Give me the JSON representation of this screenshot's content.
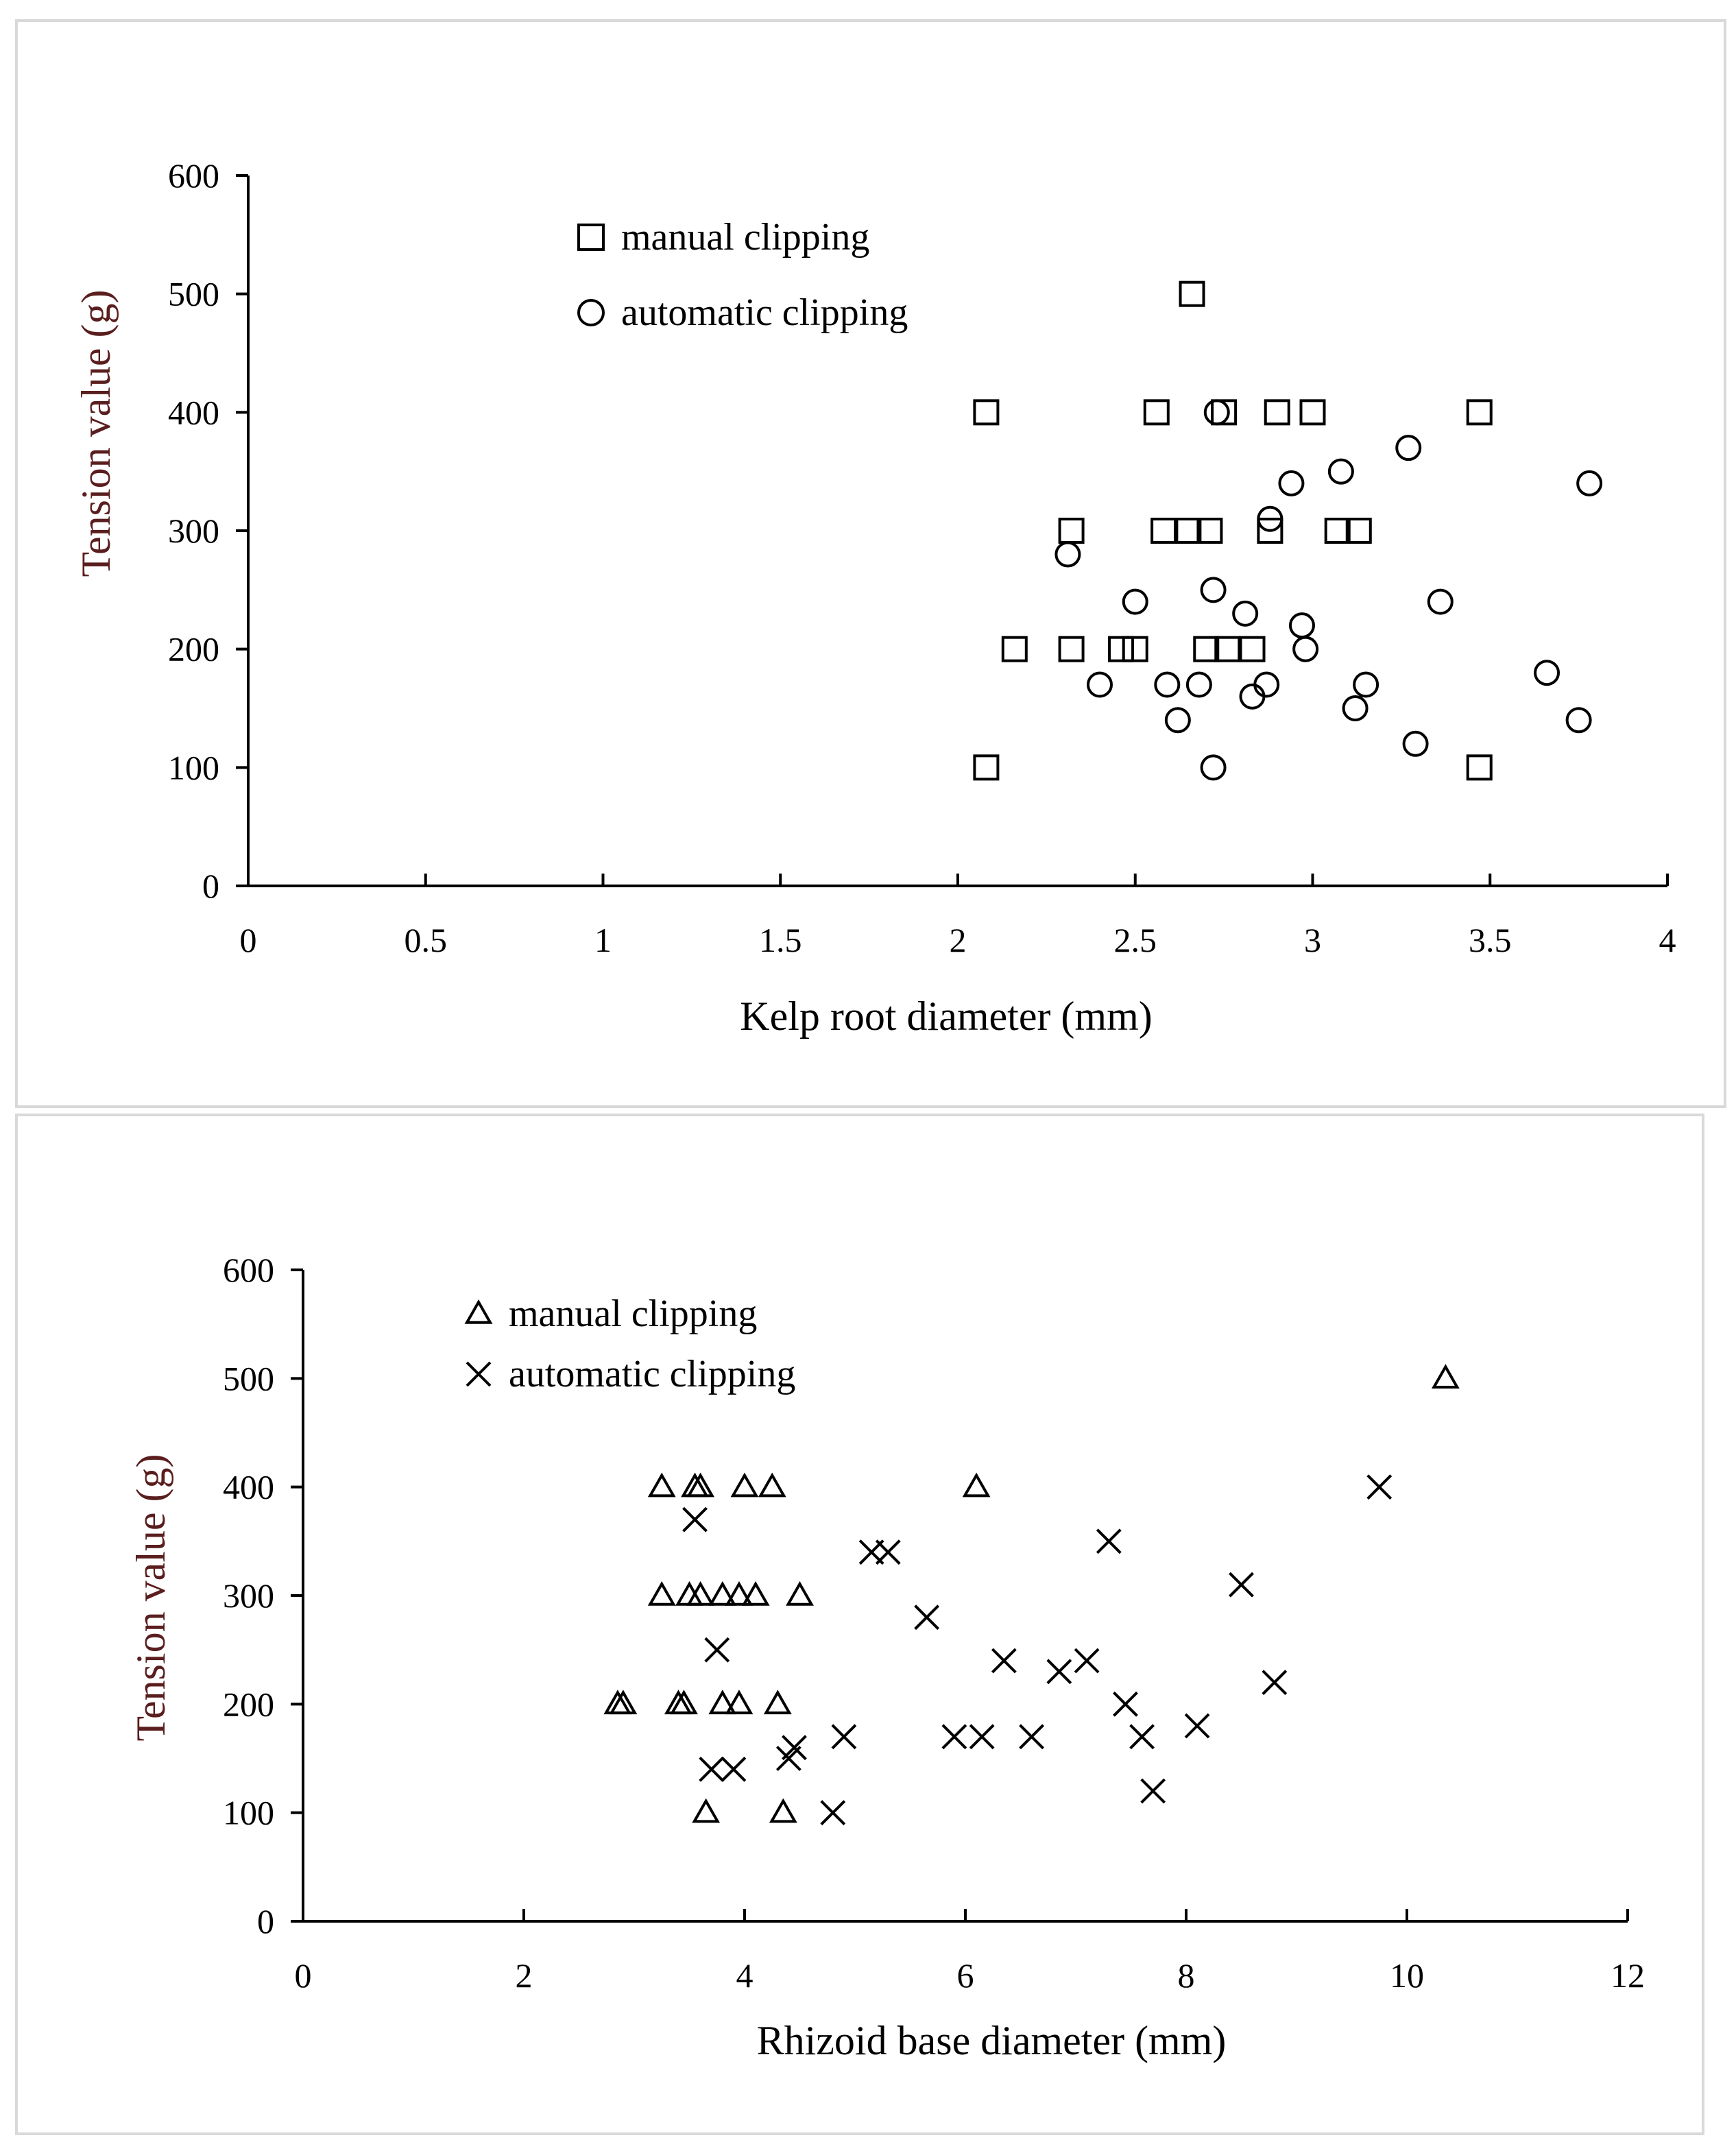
{
  "chart_data": [
    {
      "type": "scatter",
      "xlabel": "Kelp root diameter (mm)",
      "ylabel": "Tension value (g)",
      "xlim": [
        0,
        4
      ],
      "ylim": [
        0,
        600
      ],
      "xticks": [
        "0",
        "0.5",
        "1",
        "1.5",
        "2",
        "2.5",
        "3",
        "3.5",
        "4"
      ],
      "yticks": [
        "0",
        "100",
        "200",
        "300",
        "400",
        "500",
        "600"
      ],
      "legend_position": "top-left",
      "series": [
        {
          "name": "manual clipping",
          "marker": "square",
          "points": [
            [
              2.08,
              400
            ],
            [
              2.56,
              400
            ],
            [
              2.75,
              400
            ],
            [
              2.9,
              400
            ],
            [
              3.0,
              400
            ],
            [
              3.47,
              400
            ],
            [
              2.66,
              500
            ],
            [
              2.32,
              300
            ],
            [
              2.58,
              300
            ],
            [
              2.65,
              300
            ],
            [
              2.71,
              300
            ],
            [
              2.88,
              300
            ],
            [
              3.07,
              300
            ],
            [
              3.13,
              300
            ],
            [
              2.16,
              200
            ],
            [
              2.32,
              200
            ],
            [
              2.46,
              200
            ],
            [
              2.5,
              200
            ],
            [
              2.7,
              200
            ],
            [
              2.76,
              200
            ],
            [
              2.83,
              200
            ],
            [
              2.08,
              100
            ],
            [
              3.47,
              100
            ]
          ]
        },
        {
          "name": "automatic clipping",
          "marker": "circle",
          "points": [
            [
              2.73,
              400
            ],
            [
              3.27,
              370
            ],
            [
              3.08,
              350
            ],
            [
              2.94,
              340
            ],
            [
              3.78,
              340
            ],
            [
              2.88,
              310
            ],
            [
              2.31,
              280
            ],
            [
              2.72,
              250
            ],
            [
              2.5,
              240
            ],
            [
              3.36,
              240
            ],
            [
              2.81,
              230
            ],
            [
              2.97,
              220
            ],
            [
              2.98,
              200
            ],
            [
              3.66,
              180
            ],
            [
              2.4,
              170
            ],
            [
              2.59,
              170
            ],
            [
              2.68,
              170
            ],
            [
              2.87,
              170
            ],
            [
              3.15,
              170
            ],
            [
              2.83,
              160
            ],
            [
              3.12,
              150
            ],
            [
              2.62,
              140
            ],
            [
              3.75,
              140
            ],
            [
              3.29,
              120
            ],
            [
              2.72,
              100
            ]
          ]
        }
      ]
    },
    {
      "type": "scatter",
      "xlabel": "Rhizoid base diameter (mm)",
      "ylabel": "Tension value (g)",
      "xlim": [
        0,
        12
      ],
      "ylim": [
        0,
        600
      ],
      "xticks": [
        "0",
        "2",
        "4",
        "6",
        "8",
        "10",
        "12"
      ],
      "yticks": [
        "0",
        "100",
        "200",
        "300",
        "400",
        "500",
        "600"
      ],
      "legend_position": "top-left",
      "series": [
        {
          "name": "manual clipping",
          "marker": "triangle",
          "points": [
            [
              3.25,
              400
            ],
            [
              3.55,
              400
            ],
            [
              3.6,
              400
            ],
            [
              4.0,
              400
            ],
            [
              4.25,
              400
            ],
            [
              6.1,
              400
            ],
            [
              10.35,
              500
            ],
            [
              3.25,
              300
            ],
            [
              3.5,
              300
            ],
            [
              3.6,
              300
            ],
            [
              3.8,
              300
            ],
            [
              3.95,
              300
            ],
            [
              4.1,
              300
            ],
            [
              4.5,
              300
            ],
            [
              2.85,
              200
            ],
            [
              2.9,
              200
            ],
            [
              3.4,
              200
            ],
            [
              3.45,
              200
            ],
            [
              3.8,
              200
            ],
            [
              3.95,
              200
            ],
            [
              4.3,
              200
            ],
            [
              3.65,
              100
            ],
            [
              4.35,
              100
            ]
          ]
        },
        {
          "name": "automatic clipping",
          "marker": "cross",
          "points": [
            [
              9.75,
              400
            ],
            [
              3.55,
              370
            ],
            [
              7.3,
              350
            ],
            [
              5.15,
              340
            ],
            [
              5.3,
              340
            ],
            [
              8.5,
              310
            ],
            [
              5.65,
              280
            ],
            [
              3.75,
              250
            ],
            [
              6.35,
              240
            ],
            [
              7.1,
              240
            ],
            [
              6.85,
              230
            ],
            [
              8.8,
              220
            ],
            [
              7.45,
              200
            ],
            [
              8.1,
              180
            ],
            [
              4.9,
              170
            ],
            [
              5.9,
              170
            ],
            [
              6.15,
              170
            ],
            [
              6.6,
              170
            ],
            [
              7.6,
              170
            ],
            [
              4.45,
              160
            ],
            [
              4.4,
              150
            ],
            [
              3.7,
              140
            ],
            [
              3.9,
              140
            ],
            [
              7.7,
              120
            ],
            [
              4.8,
              100
            ]
          ]
        }
      ]
    }
  ]
}
